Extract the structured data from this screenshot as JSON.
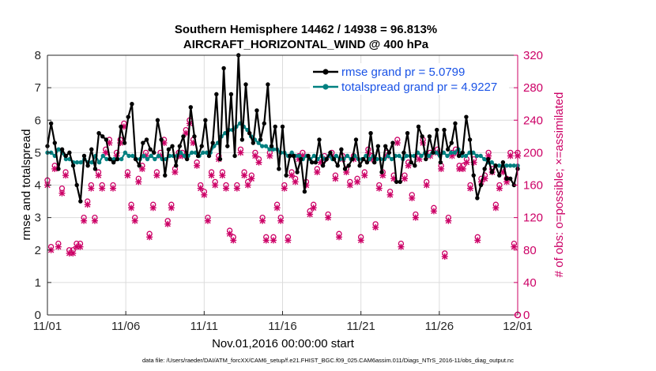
{
  "chart_data": {
    "type": "line",
    "title_line1": "Southern Hemisphere 14462 / 14938 = 96.813%",
    "title_line2": "AIRCRAFT_HORIZONTAL_WIND @ 400 hPa",
    "xlabel": "Nov.01,2016 00:00:00 start",
    "ylabel_left": "rmse and totalspread",
    "ylabel_right": "# of obs: o=possible; ×=assimilated",
    "x_range_days": [
      0,
      30
    ],
    "ylim_left": [
      0,
      8
    ],
    "ylim_right": [
      0,
      320
    ],
    "x_ticks": [
      {
        "day": 0,
        "label": "11/01"
      },
      {
        "day": 5,
        "label": "11/06"
      },
      {
        "day": 10,
        "label": "11/11"
      },
      {
        "day": 15,
        "label": "11/16"
      },
      {
        "day": 20,
        "label": "11/21"
      },
      {
        "day": 25,
        "label": "11/26"
      },
      {
        "day": 30,
        "label": "12/01"
      }
    ],
    "y_ticks_left": [
      "0",
      "1",
      "2",
      "3",
      "4",
      "5",
      "6",
      "7",
      "8"
    ],
    "y_ticks_right": [
      "0",
      "40",
      "80",
      "120",
      "160",
      "200",
      "240",
      "280",
      "320"
    ],
    "legend_position": "top-right",
    "colors": {
      "rmse": "#000000",
      "spread": "#008080",
      "obs": "#cc0066"
    },
    "series": [
      {
        "name": "rmse grand pr = 5.0799",
        "axis": "left",
        "values": [
          5.2,
          5.9,
          5.3,
          4.5,
          5.1,
          4.9,
          5.0,
          4.6,
          4.0,
          3.5,
          4.9,
          4.6,
          5.1,
          4.5,
          5.6,
          5.5,
          5.4,
          4.8,
          4.7,
          4.8,
          5.8,
          5.3,
          6.1,
          6.5,
          4.8,
          4.6,
          5.3,
          5.4,
          5.1,
          5.0,
          6.0,
          5.4,
          4.3,
          5.1,
          5.2,
          4.6,
          5.2,
          5.5,
          4.8,
          6.4,
          5.5,
          4.9,
          5.2,
          6.0,
          4.9,
          5.3,
          6.8,
          4.8,
          7.6,
          5.2,
          6.8,
          4.9,
          8.0,
          5.4,
          7.1,
          5.6,
          5.3,
          6.3,
          5.4,
          5.9,
          7.1,
          5.2,
          5.8,
          4.5,
          5.8,
          4.3,
          4.9,
          4.9,
          4.4,
          4.8,
          3.8,
          4.9,
          4.7,
          4.7,
          5.4,
          4.6,
          4.8,
          5.0,
          4.8,
          4.6,
          5.1,
          4.5,
          4.6,
          4.8,
          5.4,
          4.6,
          4.8,
          4.7,
          5.6,
          4.7,
          5.2,
          4.4,
          5.2,
          5.0,
          5.3,
          4.1,
          4.1,
          5.0,
          5.6,
          4.7,
          4.6,
          5.8,
          5.5,
          4.8,
          5.5,
          5.0,
          5.7,
          4.7,
          5.7,
          5.1,
          5.3,
          5.9,
          4.9,
          5.0,
          6.1,
          5.4,
          4.3,
          3.6,
          4.0,
          4.5,
          4.8,
          4.4,
          4.6,
          4.3,
          4.7,
          4.2,
          4.2,
          4.0,
          4.5
        ]
      },
      {
        "name": "totalspread grand pr = 4.9227",
        "axis": "left",
        "values": [
          5.0,
          5.0,
          4.9,
          5.1,
          5.0,
          4.8,
          4.8,
          4.7,
          4.7,
          4.7,
          4.8,
          4.7,
          4.7,
          4.9,
          4.7,
          4.9,
          4.8,
          4.8,
          4.8,
          4.8,
          4.8,
          5.0,
          4.9,
          4.9,
          4.8,
          4.8,
          4.9,
          4.8,
          4.9,
          4.8,
          4.9,
          4.8,
          4.8,
          4.9,
          4.9,
          4.9,
          5.0,
          4.9,
          4.9,
          5.0,
          5.0,
          4.9,
          5.0,
          5.0,
          5.0,
          5.2,
          5.3,
          5.5,
          5.6,
          5.7,
          5.7,
          5.8,
          5.9,
          5.8,
          5.7,
          5.5,
          5.4,
          5.3,
          5.2,
          5.2,
          5.1,
          5.1,
          5.1,
          5.0,
          5.0,
          4.9,
          5.0,
          4.9,
          4.9,
          4.8,
          4.9,
          4.8,
          4.9,
          4.8,
          4.9,
          4.8,
          4.9,
          4.8,
          4.9,
          4.8,
          4.8,
          4.9,
          4.8,
          4.9,
          4.8,
          4.8,
          4.9,
          4.8,
          4.9,
          4.8,
          4.8,
          4.8,
          4.9,
          4.8,
          4.9,
          4.9,
          4.8,
          4.9,
          4.9,
          4.9,
          5.0,
          4.9,
          5.0,
          4.9,
          5.0,
          5.0,
          4.9,
          5.0,
          4.9,
          5.0,
          5.0,
          5.1,
          4.9,
          4.9,
          5.0,
          5.0,
          4.9,
          4.9,
          4.8,
          4.7,
          4.7,
          4.6,
          4.6,
          4.6,
          4.6,
          4.6,
          4.6,
          4.6
        ]
      },
      {
        "name": "obs possible",
        "axis": "right",
        "marker": "o",
        "values": [
          166,
          84,
          184,
          88,
          156,
          176,
          80,
          80,
          88,
          88,
          120,
          140,
          160,
          120,
          176,
          160,
          204,
          216,
          160,
          200,
          216,
          236,
          176,
          136,
          120,
          168,
          184,
          200,
          100,
          136,
          176,
          200,
          216,
          116,
          136,
          180,
          200,
          200,
          228,
          240,
          216,
          188,
          160,
          152,
          120,
          176,
          164,
          196,
          176,
          160,
          104,
          96,
          160,
          204,
          176,
          164,
          172,
          200,
          192,
          120,
          96,
          200,
          96,
          136,
          120,
          160,
          96,
          176,
          168,
          196,
          200,
          164,
          128,
          136,
          180,
          192,
          196,
          124,
          200,
          172,
          100,
          196,
          180,
          164,
          196,
          168,
          96,
          176,
          204,
          196,
          112,
          160,
          176,
          200,
          152,
          172,
          216,
          88,
          172,
          188,
          148,
          124,
          196,
          216,
          164,
          200,
          132,
          204,
          184,
          76,
          120,
          200,
          204,
          184,
          184,
          192,
          160,
          192,
          96,
          168,
          172,
          200,
          180,
          136,
          160,
          180,
          168,
          200,
          88,
          200
        ]
      },
      {
        "name": "obs assimilated",
        "axis": "right",
        "marker": "x",
        "values": [
          160,
          80,
          180,
          84,
          150,
          172,
          76,
          76,
          84,
          84,
          116,
          136,
          156,
          116,
          172,
          156,
          200,
          212,
          156,
          196,
          212,
          232,
          172,
          132,
          116,
          164,
          180,
          196,
          96,
          132,
          172,
          196,
          212,
          112,
          132,
          176,
          196,
          196,
          224,
          236,
          212,
          184,
          156,
          148,
          116,
          172,
          160,
          192,
          172,
          156,
          100,
          92,
          156,
          200,
          172,
          160,
          168,
          196,
          188,
          116,
          92,
          196,
          92,
          132,
          116,
          156,
          92,
          172,
          164,
          192,
          196,
          160,
          124,
          132,
          176,
          188,
          192,
          120,
          196,
          168,
          96,
          192,
          176,
          160,
          192,
          164,
          92,
          172,
          200,
          192,
          108,
          156,
          172,
          196,
          148,
          168,
          212,
          84,
          168,
          184,
          144,
          120,
          192,
          212,
          160,
          196,
          128,
          200,
          180,
          72,
          116,
          196,
          200,
          180,
          180,
          188,
          156,
          188,
          92,
          164,
          168,
          196,
          176,
          132,
          156,
          176,
          164,
          196,
          84,
          196
        ]
      }
    ]
  },
  "footer_text": "data file: /Users/raeder/DAI/ATM_forcXX/CAM6_setup/f.e21.FHIST_BGC.f09_025.CAM6assim.011/Diags_NTrS_2016-11/obs_diag_output.nc"
}
